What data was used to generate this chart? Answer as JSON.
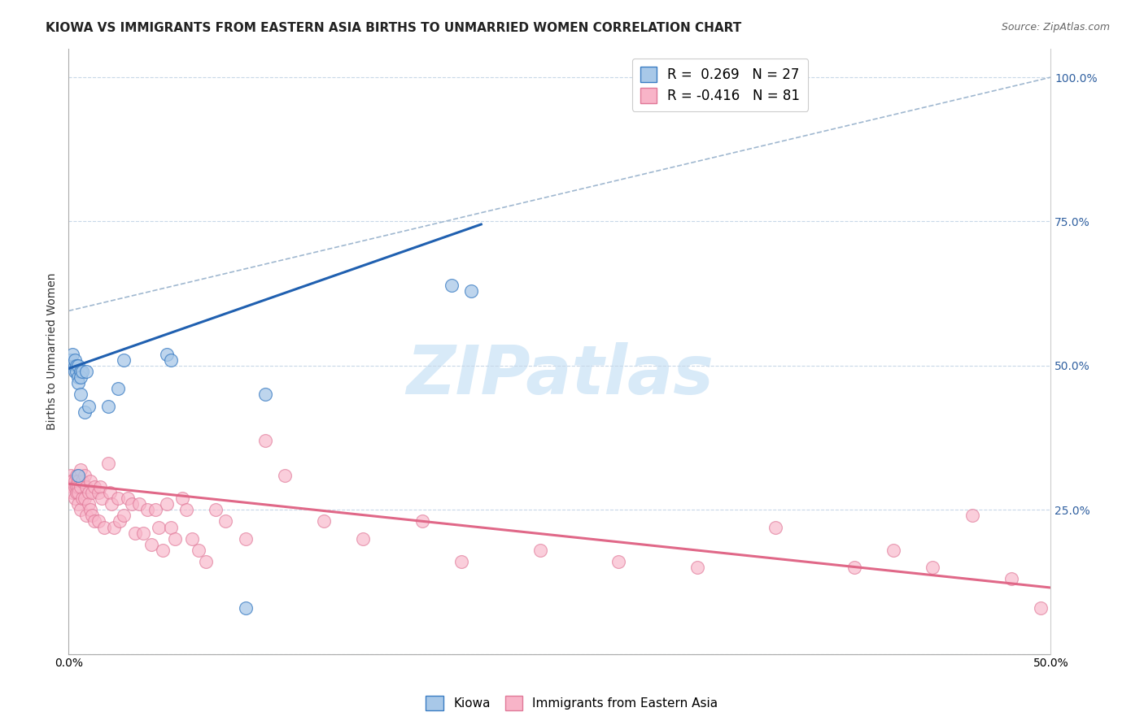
{
  "title": "KIOWA VS IMMIGRANTS FROM EASTERN ASIA BIRTHS TO UNMARRIED WOMEN CORRELATION CHART",
  "source": "Source: ZipAtlas.com",
  "ylabel": "Births to Unmarried Women",
  "xmin": 0.0,
  "xmax": 0.5,
  "ymin": 0.0,
  "ymax": 1.05,
  "yticks": [
    0.0,
    0.25,
    0.5,
    0.75,
    1.0
  ],
  "ytick_labels_right": [
    "",
    "25.0%",
    "50.0%",
    "75.0%",
    "100.0%"
  ],
  "xticks": [
    0.0,
    0.1,
    0.2,
    0.3,
    0.4,
    0.5
  ],
  "xtick_labels": [
    "0.0%",
    "",
    "",
    "",
    "",
    "50.0%"
  ],
  "legend_blue_r": "R =  0.269",
  "legend_blue_n": "N = 27",
  "legend_pink_r": "R = -0.416",
  "legend_pink_n": "N = 81",
  "blue_color": "#a8c8e8",
  "blue_edge_color": "#3a7cc3",
  "blue_line_color": "#2060b0",
  "pink_color": "#f8b4c8",
  "pink_edge_color": "#e07898",
  "pink_line_color": "#e06888",
  "dashed_line_color": "#a0b8d0",
  "watermark": "ZIPatlas",
  "watermark_color": "#d8eaf8",
  "background_color": "#ffffff",
  "kiowa_x": [
    0.001,
    0.002,
    0.003,
    0.003,
    0.003,
    0.004,
    0.004,
    0.005,
    0.005,
    0.005,
    0.005,
    0.006,
    0.006,
    0.006,
    0.007,
    0.008,
    0.009,
    0.01,
    0.02,
    0.025,
    0.028,
    0.05,
    0.052,
    0.09,
    0.1,
    0.195,
    0.205
  ],
  "kiowa_y": [
    0.51,
    0.52,
    0.5,
    0.51,
    0.49,
    0.5,
    0.49,
    0.5,
    0.48,
    0.47,
    0.31,
    0.49,
    0.48,
    0.45,
    0.49,
    0.42,
    0.49,
    0.43,
    0.43,
    0.46,
    0.51,
    0.52,
    0.51,
    0.08,
    0.45,
    0.64,
    0.63
  ],
  "pink_x": [
    0.001,
    0.001,
    0.002,
    0.002,
    0.002,
    0.003,
    0.003,
    0.003,
    0.004,
    0.004,
    0.004,
    0.005,
    0.005,
    0.005,
    0.005,
    0.006,
    0.006,
    0.006,
    0.007,
    0.007,
    0.008,
    0.008,
    0.009,
    0.009,
    0.01,
    0.01,
    0.011,
    0.011,
    0.012,
    0.012,
    0.013,
    0.013,
    0.015,
    0.015,
    0.016,
    0.017,
    0.018,
    0.02,
    0.021,
    0.022,
    0.023,
    0.025,
    0.026,
    0.028,
    0.03,
    0.032,
    0.034,
    0.036,
    0.038,
    0.04,
    0.042,
    0.044,
    0.046,
    0.048,
    0.05,
    0.052,
    0.054,
    0.058,
    0.06,
    0.063,
    0.066,
    0.07,
    0.075,
    0.08,
    0.09,
    0.1,
    0.11,
    0.13,
    0.15,
    0.18,
    0.2,
    0.24,
    0.28,
    0.32,
    0.36,
    0.4,
    0.42,
    0.44,
    0.46,
    0.48,
    0.495
  ],
  "pink_y": [
    0.31,
    0.3,
    0.3,
    0.29,
    0.28,
    0.3,
    0.29,
    0.27,
    0.31,
    0.29,
    0.28,
    0.3,
    0.29,
    0.28,
    0.26,
    0.32,
    0.29,
    0.25,
    0.3,
    0.27,
    0.31,
    0.27,
    0.29,
    0.24,
    0.28,
    0.26,
    0.3,
    0.25,
    0.28,
    0.24,
    0.29,
    0.23,
    0.28,
    0.23,
    0.29,
    0.27,
    0.22,
    0.33,
    0.28,
    0.26,
    0.22,
    0.27,
    0.23,
    0.24,
    0.27,
    0.26,
    0.21,
    0.26,
    0.21,
    0.25,
    0.19,
    0.25,
    0.22,
    0.18,
    0.26,
    0.22,
    0.2,
    0.27,
    0.25,
    0.2,
    0.18,
    0.16,
    0.25,
    0.23,
    0.2,
    0.37,
    0.31,
    0.23,
    0.2,
    0.23,
    0.16,
    0.18,
    0.16,
    0.15,
    0.22,
    0.15,
    0.18,
    0.15,
    0.24,
    0.13,
    0.08
  ],
  "blue_line_x": [
    0.0,
    0.21
  ],
  "blue_line_y": [
    0.495,
    0.745
  ],
  "pink_line_x": [
    0.0,
    0.5
  ],
  "pink_line_y": [
    0.295,
    0.115
  ],
  "dashed_line_x": [
    0.0,
    0.5
  ],
  "dashed_line_y": [
    0.595,
    1.0
  ],
  "title_fontsize": 11,
  "legend_fontsize": 12
}
